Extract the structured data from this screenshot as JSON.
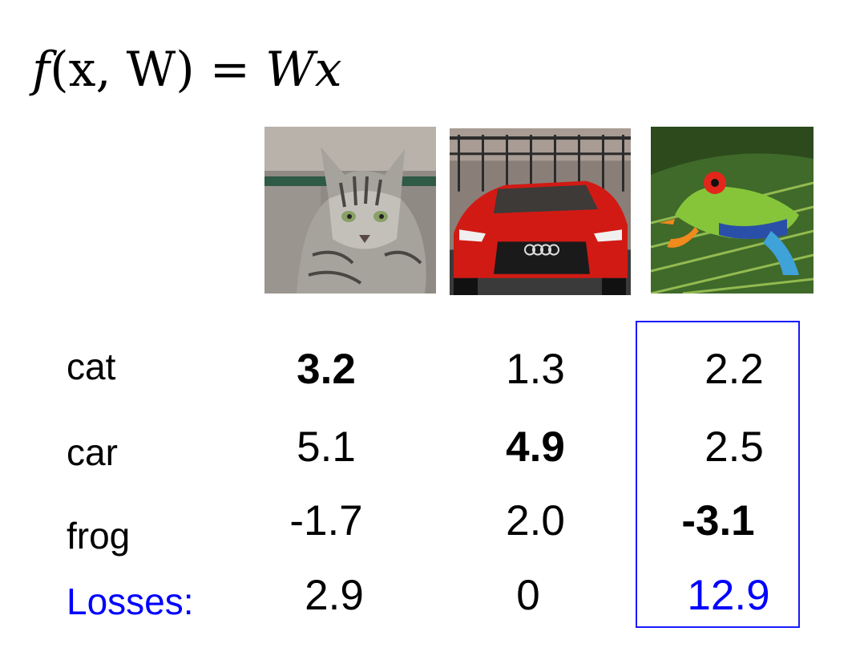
{
  "formula": {
    "prefix": "f",
    "args": "(x, W)",
    "eq": " = ",
    "rhs": "Wx"
  },
  "images": [
    {
      "name": "cat",
      "icon": "cat-photo"
    },
    {
      "name": "car",
      "icon": "car-photo"
    },
    {
      "name": "frog",
      "icon": "frog-photo"
    }
  ],
  "rows": [
    {
      "label": "cat",
      "scores": [
        "3.2",
        "1.3",
        "2.2"
      ],
      "bold": [
        true,
        false,
        false
      ]
    },
    {
      "label": "car",
      "scores": [
        "5.1",
        "4.9",
        "2.5"
      ],
      "bold": [
        false,
        true,
        false
      ]
    },
    {
      "label": "frog",
      "scores": [
        "-1.7",
        "2.0",
        "-3.1"
      ],
      "bold": [
        false,
        false,
        true
      ]
    }
  ],
  "losses": {
    "label": "Losses:",
    "values": [
      "2.9",
      "0",
      "12.9"
    ]
  },
  "colors": {
    "accent": "#0000ff"
  }
}
